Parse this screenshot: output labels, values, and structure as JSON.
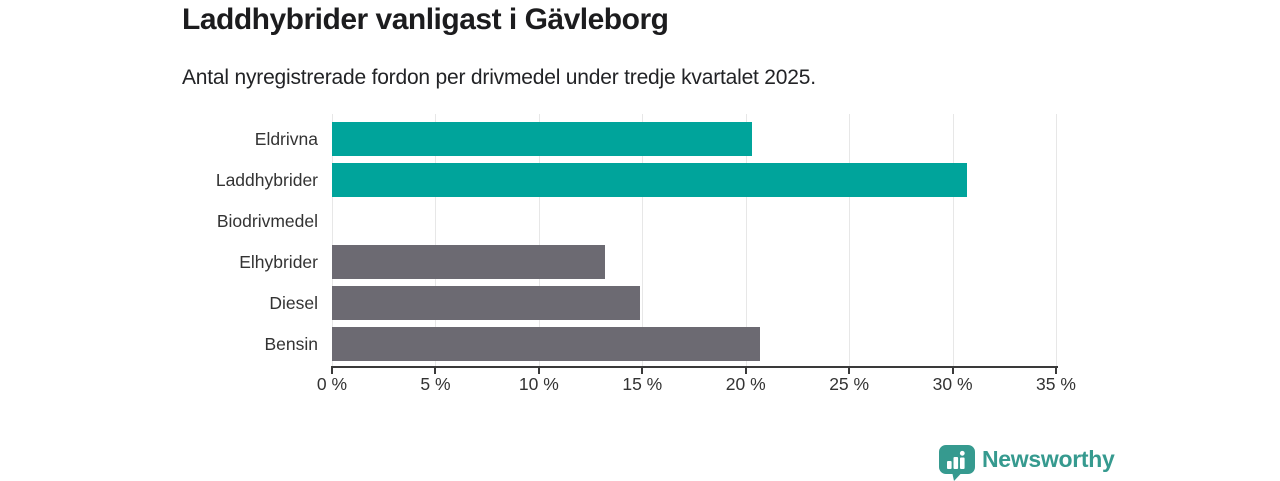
{
  "header": {
    "title": "Laddhybrider vanligast i Gävleborg",
    "subtitle": "Antal nyregistrerade fordon per drivmedel under tredje kvartalet 2025."
  },
  "chart_data": {
    "type": "bar",
    "orientation": "horizontal",
    "categories": [
      "Eldrivna",
      "Laddhybrider",
      "Biodrivmedel",
      "Elhybrider",
      "Diesel",
      "Bensin"
    ],
    "values": [
      20.3,
      30.7,
      0,
      13.2,
      14.9,
      20.7
    ],
    "bar_colors": [
      "#00a49b",
      "#00a49b",
      "#00a49b",
      "#6c6a72",
      "#6c6a72",
      "#6c6a72"
    ],
    "title": "Laddhybrider vanligast i Gävleborg",
    "subtitle": "Antal nyregistrerade fordon per drivmedel under tredje kvartalet 2025.",
    "xlabel": "",
    "ylabel": "",
    "unit": "%",
    "xlim": [
      0,
      35
    ],
    "x_tick_values": [
      0,
      5,
      10,
      15,
      20,
      25,
      30,
      35
    ],
    "x_tick_labels": [
      "0 %",
      "5 %",
      "10 %",
      "15 %",
      "20 %",
      "25 %",
      "30 %",
      "35 %"
    ],
    "grid": true,
    "legend": false
  },
  "footer": {
    "brand": "Newsworthy",
    "brand_color": "#369a8f",
    "logo_icon": "bar-chart-speech-bubble-icon"
  },
  "colors": {
    "accent_teal": "#00a49b",
    "neutral_gray": "#6c6a72",
    "axis": "#3a3a3a",
    "gridline": "#e7e7e7",
    "title_text": "#1c1c1e",
    "label_text": "#333333"
  }
}
